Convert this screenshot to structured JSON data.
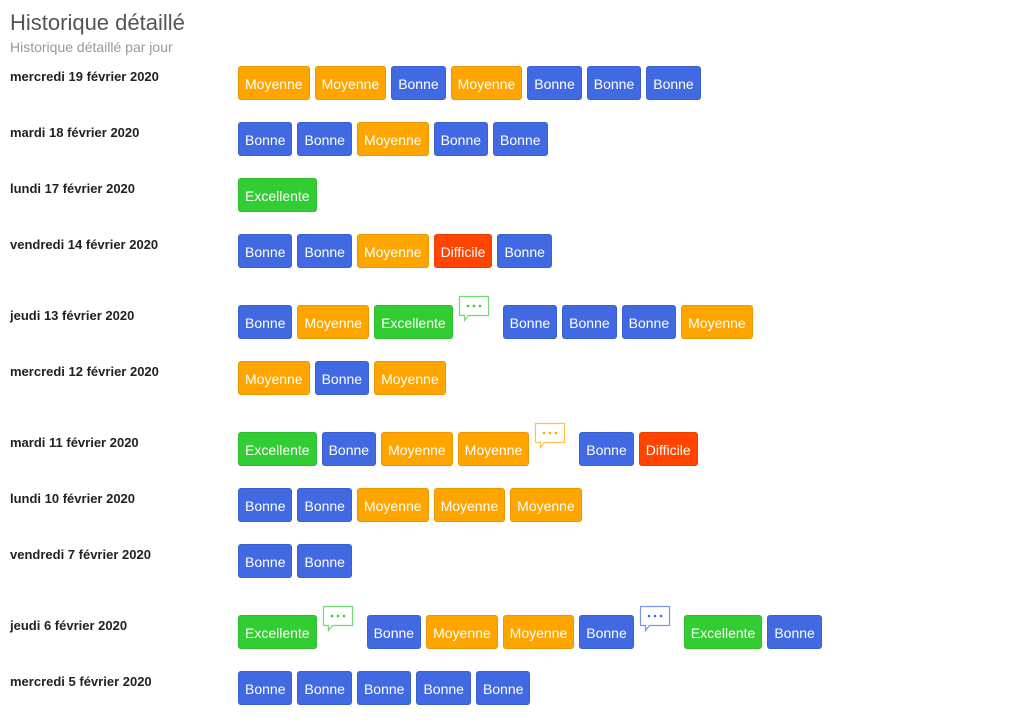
{
  "header": {
    "title": "Historique détaillé",
    "subtitle": "Historique détaillé par jour"
  },
  "colors": {
    "Bonne": "#4169e1",
    "Moyenne": "#ffa500",
    "Excellente": "#32cd32",
    "Difficile": "#ff4500"
  },
  "days": [
    {
      "date": "mercredi 19 février 2020",
      "items": [
        {
          "l": "Moyenne"
        },
        {
          "l": "Moyenne"
        },
        {
          "l": "Bonne"
        },
        {
          "l": "Moyenne"
        },
        {
          "l": "Bonne"
        },
        {
          "l": "Bonne"
        },
        {
          "l": "Bonne"
        }
      ]
    },
    {
      "date": "mardi 18 février 2020",
      "items": [
        {
          "l": "Bonne"
        },
        {
          "l": "Bonne"
        },
        {
          "l": "Moyenne"
        },
        {
          "l": "Bonne"
        },
        {
          "l": "Bonne"
        }
      ]
    },
    {
      "date": "lundi 17 février 2020",
      "items": [
        {
          "l": "Excellente"
        }
      ]
    },
    {
      "date": "vendredi 14 février 2020",
      "items": [
        {
          "l": "Bonne"
        },
        {
          "l": "Bonne"
        },
        {
          "l": "Moyenne"
        },
        {
          "l": "Difficile"
        },
        {
          "l": "Bonne"
        }
      ]
    },
    {
      "date": "jeudi 13 février 2020",
      "items": [
        {
          "l": "Bonne"
        },
        {
          "l": "Moyenne"
        },
        {
          "l": "Excellente",
          "comment": true
        },
        {
          "l": "Bonne"
        },
        {
          "l": "Bonne"
        },
        {
          "l": "Bonne"
        },
        {
          "l": "Moyenne"
        }
      ]
    },
    {
      "date": "mercredi 12 février 2020",
      "items": [
        {
          "l": "Moyenne"
        },
        {
          "l": "Bonne"
        },
        {
          "l": "Moyenne"
        }
      ]
    },
    {
      "date": "mardi 11 février 2020",
      "items": [
        {
          "l": "Excellente"
        },
        {
          "l": "Bonne"
        },
        {
          "l": "Moyenne"
        },
        {
          "l": "Moyenne",
          "comment": true
        },
        {
          "l": "Bonne"
        },
        {
          "l": "Difficile"
        }
      ]
    },
    {
      "date": "lundi 10 février 2020",
      "items": [
        {
          "l": "Bonne"
        },
        {
          "l": "Bonne"
        },
        {
          "l": "Moyenne"
        },
        {
          "l": "Moyenne"
        },
        {
          "l": "Moyenne"
        }
      ]
    },
    {
      "date": "vendredi 7 février 2020",
      "items": [
        {
          "l": "Bonne"
        },
        {
          "l": "Bonne"
        }
      ]
    },
    {
      "date": "jeudi 6 février 2020",
      "items": [
        {
          "l": "Excellente",
          "comment": true
        },
        {
          "l": "Bonne"
        },
        {
          "l": "Moyenne"
        },
        {
          "l": "Moyenne"
        },
        {
          "l": "Bonne",
          "comment": true
        },
        {
          "l": "Excellente"
        },
        {
          "l": "Bonne"
        }
      ]
    },
    {
      "date": "mercredi 5 février 2020",
      "items": [
        {
          "l": "Bonne"
        },
        {
          "l": "Bonne"
        },
        {
          "l": "Bonne"
        },
        {
          "l": "Bonne"
        },
        {
          "l": "Bonne"
        }
      ]
    }
  ]
}
